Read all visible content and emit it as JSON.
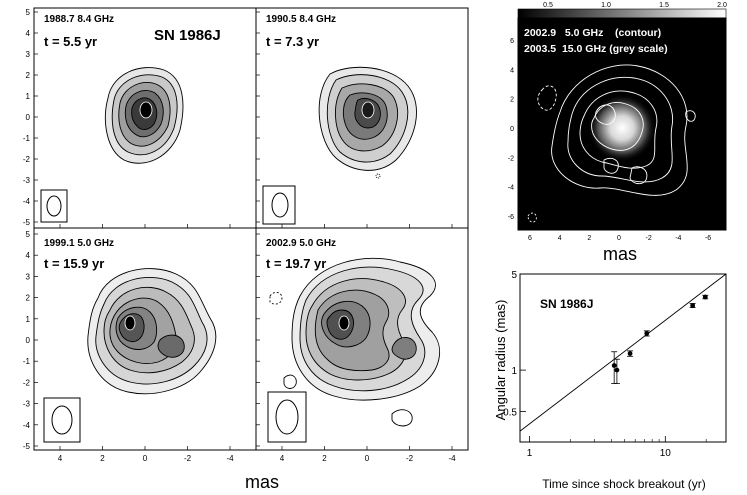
{
  "figure": {
    "panels": [
      {
        "id": "a",
        "epoch": "1988.7",
        "freq": "8.4 GHz",
        "t_label": "t = 5.5 yr",
        "title": "SN 1986J"
      },
      {
        "id": "b",
        "epoch": "1990.5",
        "freq": "8.4 GHz",
        "t_label": "t = 7.3 yr"
      },
      {
        "id": "c",
        "epoch": "1999.1",
        "freq": "5.0 GHz",
        "t_label": "t = 15.9 yr"
      },
      {
        "id": "d",
        "epoch": "2002.9",
        "freq": "5.0 GHz",
        "t_label": "t = 19.7 yr"
      }
    ],
    "left_y_ticks": [
      "5",
      "4",
      "3",
      "2",
      "1",
      "0",
      "-1",
      "-2",
      "-3",
      "-4",
      "-5"
    ],
    "left_x_ticks": [
      "4",
      "2",
      "0",
      "-2",
      "-4"
    ],
    "left_xlabel": "mas",
    "color_panel": {
      "colorbar_ticks": [
        "0.5",
        "1.0",
        "1.5",
        "2.0"
      ],
      "line1": "2002.9   5.0 GHz    (contour)",
      "line2": "2003.5  15.0 GHz (grey scale)",
      "y_ticks": [
        "6",
        "4",
        "2",
        "0",
        "-2",
        "-4",
        "-6"
      ],
      "x_ticks": [
        "6",
        "4",
        "2",
        "0",
        "-2",
        "-4",
        "-6"
      ],
      "xlabel": "mas"
    }
  },
  "chart_data": {
    "type": "scatter",
    "title": "SN 1986J",
    "xlabel": "Time since shock breakout (yr)",
    "ylabel": "Angular radius (mas)",
    "xscale": "log",
    "yscale": "log",
    "xlim": [
      0.85,
      28
    ],
    "ylim": [
      0.3,
      5
    ],
    "x_ticks": [
      "1",
      "10"
    ],
    "y_ticks": [
      "5",
      "1",
      "0.5"
    ],
    "points": [
      {
        "x": 4.2,
        "y": 1.08,
        "err": 0.28
      },
      {
        "x": 4.4,
        "y": 1.0,
        "err": 0.2
      },
      {
        "x": 5.5,
        "y": 1.32,
        "err": 0.06
      },
      {
        "x": 7.3,
        "y": 1.85,
        "err": 0.08
      },
      {
        "x": 15.9,
        "y": 2.95,
        "err": 0.1
      },
      {
        "x": 19.7,
        "y": 3.4,
        "err": 0.1
      }
    ],
    "fit": {
      "x": [
        0.85,
        28
      ],
      "y": [
        0.36,
        5.6
      ]
    }
  }
}
